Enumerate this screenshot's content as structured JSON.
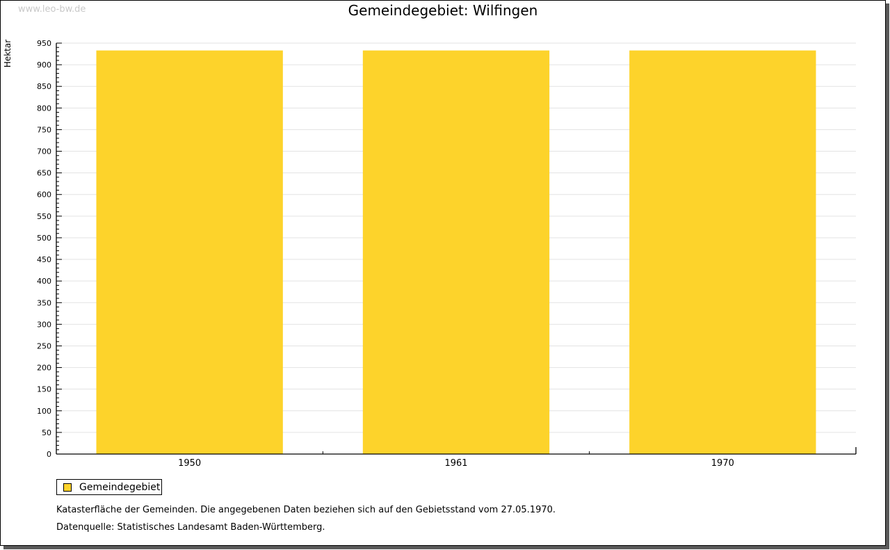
{
  "watermark": "www.leo-bw.de",
  "title": "Gemeindegebiet: Wilfingen",
  "legend": {
    "label": "Gemeindegebiet",
    "swatch_color": "#FDD32B"
  },
  "footnotes": {
    "line1": "Katasterfläche der Gemeinden. Die angegebenen Daten beziehen sich auf den Gebietsstand vom 27.05.1970.",
    "line2": "Datenquelle: Statistisches Landesamt Baden-Württemberg."
  },
  "colors": {
    "bar": "#FDD32B",
    "axis": "#000000",
    "grid": "#e3e3e3",
    "tick_text": "#000000",
    "watermark": "#c9c9c9",
    "shadow": "#595959"
  },
  "chart_data": {
    "type": "bar",
    "title": "Gemeindegebiet: Wilfingen",
    "categories": [
      "1950",
      "1961",
      "1970"
    ],
    "series": [
      {
        "name": "Gemeindegebiet",
        "color": "#FDD32B",
        "values": [
          933,
          933,
          933
        ]
      }
    ],
    "xlabel": "",
    "ylabel": "Hektar",
    "ylim": [
      0,
      950
    ],
    "ytick_major": 50,
    "ytick_minor": 10,
    "grid": "horizontal-major-lines",
    "legend_position": "bottom-left"
  }
}
